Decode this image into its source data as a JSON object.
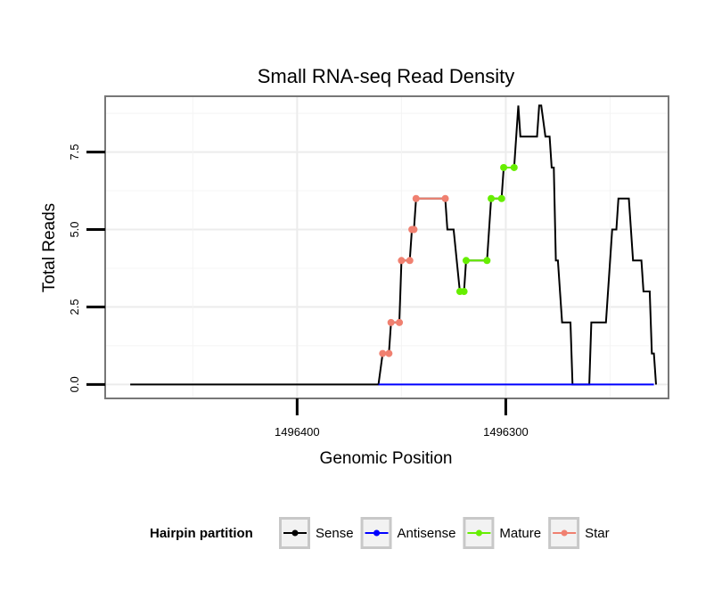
{
  "chart_data": {
    "type": "line",
    "title": "Small RNA-seq Read Density",
    "xlabel": "Genomic Position",
    "ylabel": "Total Reads",
    "x_reversed": true,
    "xlim": [
      1496492,
      1496222
    ],
    "ylim": [
      -0.45,
      9.3
    ],
    "x_ticks": [
      1496400,
      1496300
    ],
    "x_tick_labels": [
      "1496400",
      "1496300"
    ],
    "y_ticks": [
      0,
      2.5,
      5,
      7.5
    ],
    "y_tick_labels": [
      "0.0",
      "2.5",
      "5.0",
      "7.5"
    ],
    "grid": true,
    "legend": {
      "title": "Hairpin partition",
      "position": "bottom",
      "entries": [
        {
          "name": "Sense",
          "color": "#000000"
        },
        {
          "name": "Antisense",
          "color": "#0000ff"
        },
        {
          "name": "Mature",
          "color": "#66ee00"
        },
        {
          "name": "Star",
          "color": "#f08070"
        }
      ]
    },
    "series": [
      {
        "name": "Sense",
        "color": "#000000",
        "points": [
          [
            1496480,
            0
          ],
          [
            1496361,
            0
          ],
          [
            1496359,
            1
          ],
          [
            1496356,
            1
          ],
          [
            1496355,
            2
          ],
          [
            1496351,
            2
          ],
          [
            1496350,
            4
          ],
          [
            1496346,
            4
          ],
          [
            1496345,
            5
          ],
          [
            1496344,
            5
          ],
          [
            1496343,
            6
          ],
          [
            1496329,
            6
          ],
          [
            1496328,
            5
          ],
          [
            1496325,
            5
          ],
          [
            1496322,
            3
          ],
          [
            1496320,
            3
          ],
          [
            1496319,
            4
          ],
          [
            1496309,
            4
          ],
          [
            1496307,
            6
          ],
          [
            1496302,
            6
          ],
          [
            1496301,
            7
          ],
          [
            1496296,
            7
          ],
          [
            1496294,
            9
          ],
          [
            1496293,
            8
          ],
          [
            1496285,
            8
          ],
          [
            1496284,
            9
          ],
          [
            1496283,
            9
          ],
          [
            1496281,
            8
          ],
          [
            1496279,
            8
          ],
          [
            1496278,
            7
          ],
          [
            1496277,
            7
          ],
          [
            1496276,
            4
          ],
          [
            1496275,
            4
          ],
          [
            1496273,
            2
          ],
          [
            1496269,
            2
          ],
          [
            1496268,
            0
          ],
          [
            1496260,
            0
          ],
          [
            1496259,
            2
          ],
          [
            1496252,
            2
          ],
          [
            1496249,
            5
          ],
          [
            1496247,
            5
          ],
          [
            1496246,
            6
          ],
          [
            1496241,
            6
          ],
          [
            1496239,
            4
          ],
          [
            1496235,
            4
          ],
          [
            1496234,
            3
          ],
          [
            1496231,
            3
          ],
          [
            1496230,
            1
          ],
          [
            1496229,
            1
          ],
          [
            1496228,
            0
          ]
        ]
      },
      {
        "name": "Antisense",
        "color": "#0000ff",
        "points": [
          [
            1496361,
            0
          ],
          [
            1496229,
            0
          ]
        ]
      },
      {
        "name": "Mature",
        "color": "#66ee00",
        "segments": [
          [
            [
              1496322,
              3
            ],
            [
              1496320,
              3
            ]
          ],
          [
            [
              1496319,
              4
            ],
            [
              1496309,
              4
            ]
          ],
          [
            [
              1496307,
              6
            ],
            [
              1496302,
              6
            ]
          ],
          [
            [
              1496301,
              7
            ],
            [
              1496296,
              7
            ]
          ]
        ]
      },
      {
        "name": "Star",
        "color": "#f08070",
        "segments": [
          [
            [
              1496359,
              1
            ],
            [
              1496356,
              1
            ]
          ],
          [
            [
              1496355,
              2
            ],
            [
              1496351,
              2
            ]
          ],
          [
            [
              1496350,
              4
            ],
            [
              1496346,
              4
            ]
          ],
          [
            [
              1496345,
              5
            ],
            [
              1496344,
              5
            ]
          ],
          [
            [
              1496343,
              6
            ],
            [
              1496329,
              6
            ]
          ]
        ]
      }
    ]
  }
}
